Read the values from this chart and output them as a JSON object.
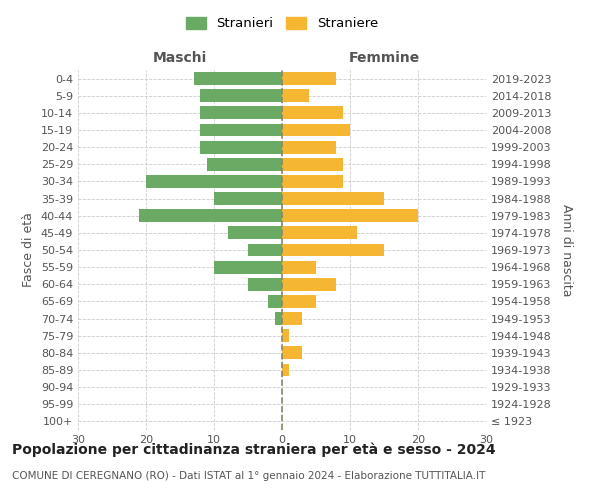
{
  "age_groups": [
    "100+",
    "95-99",
    "90-94",
    "85-89",
    "80-84",
    "75-79",
    "70-74",
    "65-69",
    "60-64",
    "55-59",
    "50-54",
    "45-49",
    "40-44",
    "35-39",
    "30-34",
    "25-29",
    "20-24",
    "15-19",
    "10-14",
    "5-9",
    "0-4"
  ],
  "birth_years": [
    "≤ 1923",
    "1924-1928",
    "1929-1933",
    "1934-1938",
    "1939-1943",
    "1944-1948",
    "1949-1953",
    "1954-1958",
    "1959-1963",
    "1964-1968",
    "1969-1973",
    "1974-1978",
    "1979-1983",
    "1984-1988",
    "1989-1993",
    "1994-1998",
    "1999-2003",
    "2004-2008",
    "2009-2013",
    "2014-2018",
    "2019-2023"
  ],
  "males": [
    0,
    0,
    0,
    0,
    0,
    0,
    1,
    2,
    5,
    10,
    5,
    8,
    21,
    10,
    20,
    11,
    12,
    12,
    12,
    12,
    13
  ],
  "females": [
    0,
    0,
    0,
    1,
    3,
    1,
    3,
    5,
    8,
    5,
    15,
    11,
    20,
    15,
    9,
    9,
    8,
    10,
    9,
    4,
    8
  ],
  "male_color": "#6aaa64",
  "female_color": "#f5b731",
  "grid_color": "#cccccc",
  "zero_line_color": "#888866",
  "title": "Popolazione per cittadinanza straniera per età e sesso - 2024",
  "subtitle": "COMUNE DI CEREGNANO (RO) - Dati ISTAT al 1° gennaio 2024 - Elaborazione TUTTITALIA.IT",
  "label_maschi": "Maschi",
  "label_femmine": "Femmine",
  "ylabel_left": "Fasce di età",
  "ylabel_right": "Anni di nascita",
  "xlim": 30,
  "legend_male": "Stranieri",
  "legend_female": "Straniere",
  "tick_fontsize": 8,
  "label_fontsize": 9,
  "title_fontsize": 10,
  "subtitle_fontsize": 7.5
}
